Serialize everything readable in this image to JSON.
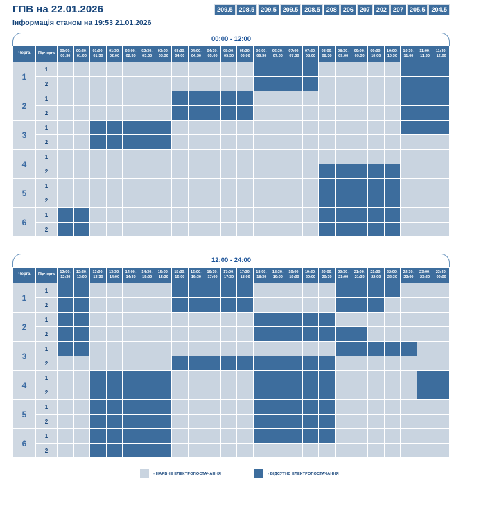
{
  "header": {
    "title": "ГПВ на 22.01.2026",
    "subtitle": "Інформація станом на 19:53 21.01.2026",
    "capacity_values": [
      "209.5",
      "208.5",
      "209.5",
      "209.5",
      "208.5",
      "208",
      "206",
      "207",
      "202",
      "207",
      "205.5",
      "204.5"
    ]
  },
  "table_labels": {
    "queue": "Черга",
    "subqueue": "Підчерга"
  },
  "legend": {
    "on_label": "- НАЯВНЕ ЕЛЕКТРОПОСТАЧАННЯ",
    "off_label": "- ВІДСУТНЄ ЕЛЕКТРОПОСТАЧАННЯ"
  },
  "colors": {
    "on": "#c9d4e0",
    "off": "#3d6d9d",
    "header_bg": "#3d6d9d",
    "accent_text": "#17457a"
  },
  "chart_data": [
    {
      "type": "heatmap",
      "title": "00:00 - 12:00",
      "cell_encoding": {
        "0": "НАЯВНЕ ЕЛЕКТРОПОСТАЧАННЯ",
        "1": "ВІДСУТНЄ ЕЛЕКТРОПОСТАЧАННЯ"
      },
      "time_slots": [
        "00:00-00:30",
        "00:30-01:00",
        "01:00-01:30",
        "01:30-02:00",
        "02:00-02:30",
        "02:30-03:00",
        "03:00-03:30",
        "03:30-04:00",
        "04:00-04:30",
        "04:30-05:00",
        "05:00-05:30",
        "05:30-06:00",
        "06:00-06:30",
        "06:30-07:00",
        "07:00-07:30",
        "07:30-08:00",
        "08:00-08:30",
        "08:30-09:00",
        "09:00-09:30",
        "09:30-10:00",
        "10:00-10:30",
        "10:30-11:00",
        "11:00-11:30",
        "11:30-12:00"
      ],
      "rows": [
        {
          "queue": "1",
          "subqueue": "1",
          "cells": [
            0,
            0,
            0,
            0,
            0,
            0,
            0,
            0,
            0,
            0,
            0,
            0,
            1,
            1,
            1,
            1,
            0,
            0,
            0,
            0,
            0,
            1,
            1,
            1
          ]
        },
        {
          "queue": "1",
          "subqueue": "2",
          "cells": [
            0,
            0,
            0,
            0,
            0,
            0,
            0,
            0,
            0,
            0,
            0,
            0,
            1,
            1,
            1,
            1,
            0,
            0,
            0,
            0,
            0,
            1,
            1,
            1
          ]
        },
        {
          "queue": "2",
          "subqueue": "1",
          "cells": [
            0,
            0,
            0,
            0,
            0,
            0,
            0,
            1,
            1,
            1,
            1,
            1,
            0,
            0,
            0,
            0,
            0,
            0,
            0,
            0,
            0,
            1,
            1,
            1
          ]
        },
        {
          "queue": "2",
          "subqueue": "2",
          "cells": [
            0,
            0,
            0,
            0,
            0,
            0,
            0,
            1,
            1,
            1,
            1,
            1,
            0,
            0,
            0,
            0,
            0,
            0,
            0,
            0,
            0,
            1,
            1,
            1
          ]
        },
        {
          "queue": "3",
          "subqueue": "1",
          "cells": [
            0,
            0,
            1,
            1,
            1,
            1,
            1,
            0,
            0,
            0,
            0,
            0,
            0,
            0,
            0,
            0,
            0,
            0,
            0,
            0,
            0,
            1,
            1,
            1
          ]
        },
        {
          "queue": "3",
          "subqueue": "2",
          "cells": [
            0,
            0,
            1,
            1,
            1,
            1,
            1,
            0,
            0,
            0,
            0,
            0,
            0,
            0,
            0,
            0,
            0,
            0,
            0,
            0,
            0,
            0,
            0,
            0
          ]
        },
        {
          "queue": "4",
          "subqueue": "1",
          "cells": [
            0,
            0,
            0,
            0,
            0,
            0,
            0,
            0,
            0,
            0,
            0,
            0,
            0,
            0,
            0,
            0,
            0,
            0,
            0,
            0,
            0,
            0,
            0,
            0
          ]
        },
        {
          "queue": "4",
          "subqueue": "2",
          "cells": [
            0,
            0,
            0,
            0,
            0,
            0,
            0,
            0,
            0,
            0,
            0,
            0,
            0,
            0,
            0,
            0,
            1,
            1,
            1,
            1,
            1,
            0,
            0,
            0
          ]
        },
        {
          "queue": "5",
          "subqueue": "1",
          "cells": [
            0,
            0,
            0,
            0,
            0,
            0,
            0,
            0,
            0,
            0,
            0,
            0,
            0,
            0,
            0,
            0,
            1,
            1,
            1,
            1,
            1,
            0,
            0,
            0
          ]
        },
        {
          "queue": "5",
          "subqueue": "2",
          "cells": [
            0,
            0,
            0,
            0,
            0,
            0,
            0,
            0,
            0,
            0,
            0,
            0,
            0,
            0,
            0,
            0,
            1,
            1,
            1,
            1,
            1,
            0,
            0,
            0
          ]
        },
        {
          "queue": "6",
          "subqueue": "1",
          "cells": [
            1,
            1,
            0,
            0,
            0,
            0,
            0,
            0,
            0,
            0,
            0,
            0,
            0,
            0,
            0,
            0,
            1,
            1,
            1,
            1,
            1,
            0,
            0,
            0
          ]
        },
        {
          "queue": "6",
          "subqueue": "2",
          "cells": [
            1,
            1,
            0,
            0,
            0,
            0,
            0,
            0,
            0,
            0,
            0,
            0,
            0,
            0,
            0,
            0,
            1,
            1,
            1,
            1,
            1,
            0,
            0,
            0
          ]
        }
      ]
    },
    {
      "type": "heatmap",
      "title": "12:00 - 24:00",
      "cell_encoding": {
        "0": "НАЯВНЕ ЕЛЕКТРОПОСТАЧАННЯ",
        "1": "ВІДСУТНЄ ЕЛЕКТРОПОСТАЧАННЯ"
      },
      "time_slots": [
        "12:00-12:30",
        "12:30-13:00",
        "13:00-13:30",
        "13:30-14:00",
        "14:00-14:30",
        "14:30-15:00",
        "15:00-15:30",
        "15:30-16:00",
        "16:00-16:30",
        "16:30-17:00",
        "17:00-17:30",
        "17:30-18:00",
        "18:00-18:30",
        "18:30-19:00",
        "19:00-19:30",
        "19:30-20:00",
        "20:00-20:30",
        "20:30-21:00",
        "21:00-21:30",
        "21:30-22:00",
        "22:00-22:30",
        "22:30-23:00",
        "23:00-23:30",
        "23:30-00:00"
      ],
      "rows": [
        {
          "queue": "1",
          "subqueue": "1",
          "cells": [
            1,
            1,
            0,
            0,
            0,
            0,
            0,
            1,
            1,
            1,
            1,
            1,
            0,
            0,
            0,
            0,
            0,
            1,
            1,
            1,
            1,
            0,
            0,
            0
          ]
        },
        {
          "queue": "1",
          "subqueue": "2",
          "cells": [
            1,
            1,
            0,
            0,
            0,
            0,
            0,
            1,
            1,
            1,
            1,
            1,
            0,
            0,
            0,
            0,
            0,
            1,
            1,
            1,
            0,
            0,
            0,
            0
          ]
        },
        {
          "queue": "2",
          "subqueue": "1",
          "cells": [
            1,
            1,
            0,
            0,
            0,
            0,
            0,
            0,
            0,
            0,
            0,
            0,
            1,
            1,
            1,
            1,
            1,
            0,
            0,
            0,
            0,
            0,
            0,
            0
          ]
        },
        {
          "queue": "2",
          "subqueue": "2",
          "cells": [
            1,
            1,
            0,
            0,
            0,
            0,
            0,
            0,
            0,
            0,
            0,
            0,
            1,
            1,
            1,
            1,
            1,
            1,
            1,
            0,
            0,
            0,
            0,
            0
          ]
        },
        {
          "queue": "3",
          "subqueue": "1",
          "cells": [
            1,
            1,
            0,
            0,
            0,
            0,
            0,
            0,
            0,
            0,
            0,
            0,
            0,
            0,
            0,
            0,
            0,
            1,
            1,
            1,
            1,
            1,
            0,
            0
          ]
        },
        {
          "queue": "3",
          "subqueue": "2",
          "cells": [
            0,
            0,
            0,
            0,
            0,
            0,
            0,
            1,
            1,
            1,
            1,
            1,
            1,
            1,
            1,
            1,
            1,
            0,
            0,
            0,
            0,
            0,
            0,
            0
          ]
        },
        {
          "queue": "4",
          "subqueue": "1",
          "cells": [
            0,
            0,
            1,
            1,
            1,
            1,
            1,
            0,
            0,
            0,
            0,
            0,
            1,
            1,
            1,
            1,
            1,
            0,
            0,
            0,
            0,
            0,
            1,
            1
          ]
        },
        {
          "queue": "4",
          "subqueue": "2",
          "cells": [
            0,
            0,
            1,
            1,
            1,
            1,
            1,
            0,
            0,
            0,
            0,
            0,
            1,
            1,
            1,
            1,
            1,
            0,
            0,
            0,
            0,
            0,
            1,
            1
          ]
        },
        {
          "queue": "5",
          "subqueue": "1",
          "cells": [
            0,
            0,
            1,
            1,
            1,
            1,
            1,
            0,
            0,
            0,
            0,
            0,
            1,
            1,
            1,
            1,
            1,
            0,
            0,
            0,
            0,
            0,
            0,
            0
          ]
        },
        {
          "queue": "5",
          "subqueue": "2",
          "cells": [
            0,
            0,
            1,
            1,
            1,
            1,
            1,
            0,
            0,
            0,
            0,
            0,
            1,
            1,
            1,
            1,
            1,
            0,
            0,
            0,
            0,
            0,
            0,
            0
          ]
        },
        {
          "queue": "6",
          "subqueue": "1",
          "cells": [
            0,
            0,
            1,
            1,
            1,
            1,
            1,
            0,
            0,
            0,
            0,
            0,
            1,
            1,
            1,
            1,
            1,
            0,
            0,
            0,
            0,
            0,
            0,
            0
          ]
        },
        {
          "queue": "6",
          "subqueue": "2",
          "cells": [
            0,
            0,
            1,
            1,
            1,
            1,
            1,
            0,
            0,
            0,
            0,
            0,
            0,
            0,
            0,
            0,
            0,
            0,
            0,
            0,
            0,
            0,
            0,
            0
          ]
        }
      ]
    }
  ]
}
